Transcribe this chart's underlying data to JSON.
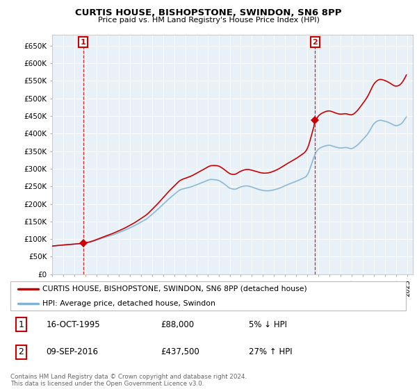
{
  "title": "CURTIS HOUSE, BISHOPSTONE, SWINDON, SN6 8PP",
  "subtitle": "Price paid vs. HM Land Registry's House Price Index (HPI)",
  "sale1_date": "16-OCT-1995",
  "sale1_price": 88000,
  "sale1_label": "1",
  "sale1_pct": "5% ↓ HPI",
  "sale2_date": "09-SEP-2016",
  "sale2_price": 437500,
  "sale2_label": "2",
  "sale2_pct": "27% ↑ HPI",
  "legend_house": "CURTIS HOUSE, BISHOPSTONE, SWINDON, SN6 8PP (detached house)",
  "legend_hpi": "HPI: Average price, detached house, Swindon",
  "footer": "Contains HM Land Registry data © Crown copyright and database right 2024.\nThis data is licensed under the Open Government Licence v3.0.",
  "house_color": "#cc0000",
  "hpi_color": "#7fb3d3",
  "plot_bg": "#e8f0f8",
  "background_color": "#ffffff",
  "ylim": [
    0,
    680000
  ],
  "yticks": [
    0,
    50000,
    100000,
    150000,
    200000,
    250000,
    300000,
    350000,
    400000,
    450000,
    500000,
    550000,
    600000,
    650000
  ],
  "sale1_x": 1995.79,
  "sale2_x": 2016.69,
  "xmin": 1993,
  "xmax": 2025.5
}
